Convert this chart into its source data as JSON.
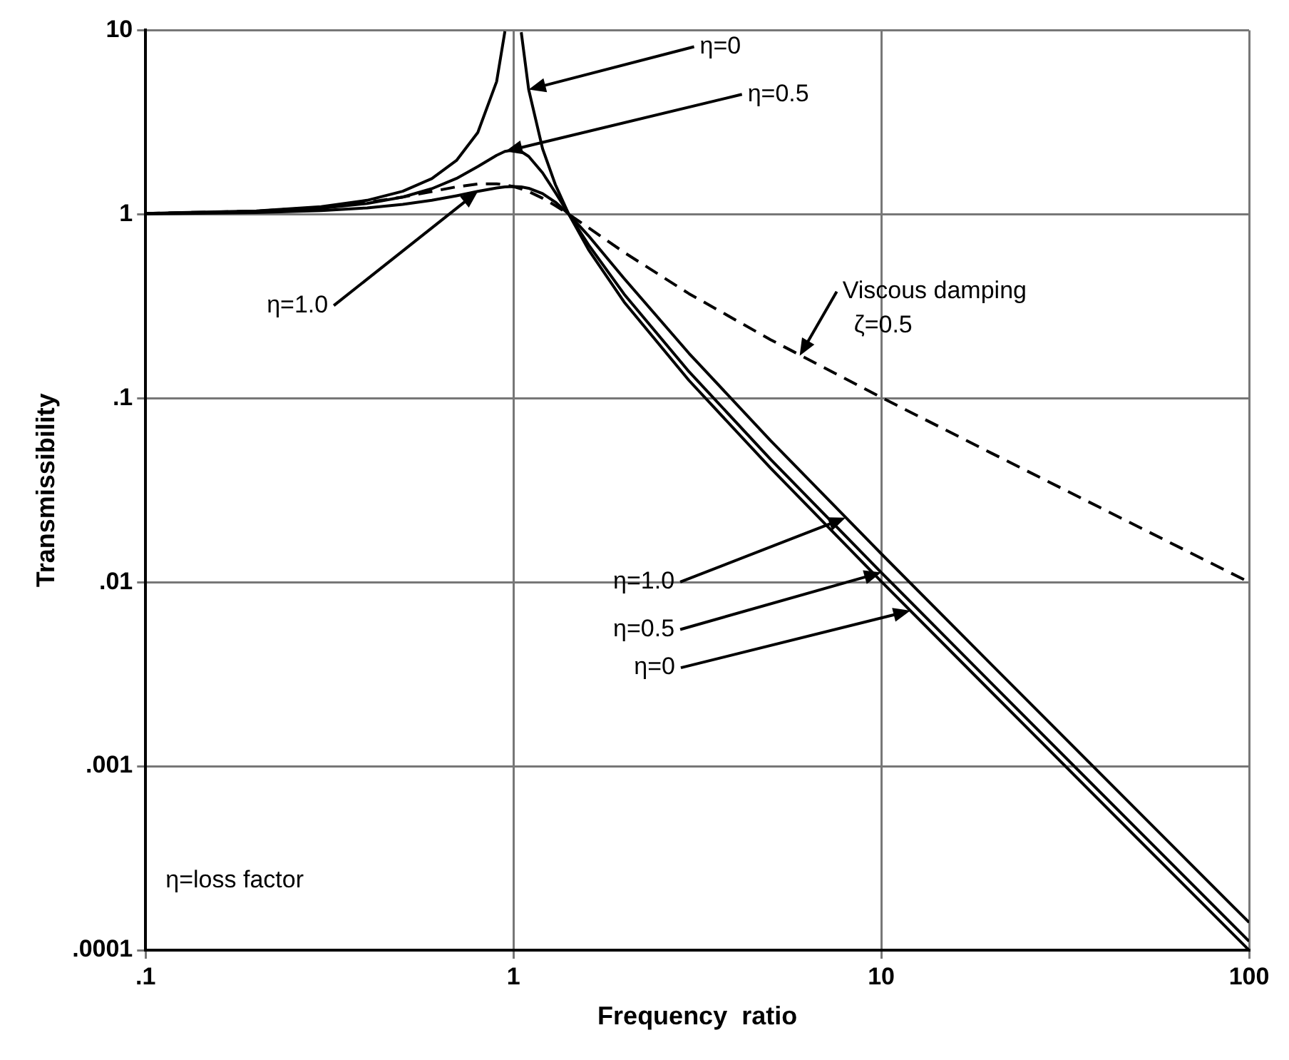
{
  "chart_data": {
    "type": "line",
    "xlabel": "Frequency  ratio",
    "ylabel": "Transmissibility",
    "log": "xy",
    "grid": true,
    "legend": false,
    "marker": "none",
    "x": [
      0.1,
      0.2,
      0.3,
      0.4,
      0.5,
      0.6,
      0.7,
      0.8,
      0.9,
      0.948,
      1,
      1.05,
      1.1,
      1.2,
      1.3,
      1.414,
      1.6,
      2,
      3,
      5,
      10,
      20,
      50,
      100
    ],
    "xlim": [
      0.1,
      100
    ],
    "ylim": [
      0.0001,
      10
    ],
    "xticks": [
      {
        "value": 0.1,
        "label": ".1"
      },
      1,
      10,
      100
    ],
    "yticks": [
      {
        "value": 0.0001,
        "label": ".0001"
      },
      {
        "value": 0.001,
        "label": ".001"
      },
      {
        "value": 0.01,
        "label": ".01"
      },
      {
        "value": 0.1,
        "label": ".1"
      },
      1,
      10
    ],
    "series": [
      {
        "color": "#000000",
        "line_style": "solid",
        "values": [
          1.01,
          1.042,
          1.099,
          1.19,
          1.333,
          1.5625,
          1.96,
          2.78,
          5.26,
          9.87,
          null,
          9.76,
          4.76,
          2.27,
          1.449,
          1.0,
          0.641,
          0.333,
          0.125,
          0.0417,
          0.0101,
          0.00251,
          0.0004,
          0.0001
        ]
      },
      {
        "color": "#000000",
        "line_style": "solid",
        "values": [
          1.008,
          1.033,
          1.077,
          1.144,
          1.24,
          1.377,
          1.565,
          1.815,
          2.09,
          2.195,
          2.236,
          2.19,
          2.062,
          1.679,
          1.312,
          1.0,
          0.6825,
          0.3676,
          0.1395,
          0.04658,
          0.01129,
          0.002802,
          0.0004474,
          0.0001118
        ]
      },
      {
        "color": "#000000",
        "line_style": "solid",
        "values": [
          1.005,
          1.02,
          1.046,
          1.083,
          1.131,
          1.191,
          1.26,
          1.331,
          1.389,
          1.408,
          1.414,
          1.407,
          1.384,
          1.294,
          1.164,
          1.0,
          0.7632,
          0.4472,
          0.1754,
          0.05887,
          0.01428,
          0.003544,
          0.0005659,
          0.0001414
        ]
      },
      {
        "color": "#000000",
        "line_style": "dashed",
        "values": [
          1.01,
          1.04,
          1.09,
          1.158,
          1.24,
          1.329,
          1.409,
          1.46,
          1.463,
          1.444,
          1.414,
          1.374,
          1.328,
          1.222,
          1.114,
          1.0,
          0.8443,
          0.6202,
          0.3701,
          0.208,
          0.101,
          0.05013,
          0.02001,
          0.010001
        ]
      }
    ],
    "annotations": [
      {
        "text": "η=0",
        "x": 1.1,
        "y": 4.76
      },
      {
        "text": "η=0.5",
        "x": 0.95,
        "y": 2.195
      },
      {
        "text": "η=1.0",
        "x": 0.8,
        "y": 1.33
      },
      {
        "text": "Viscous damping\nζ=0.5",
        "x": 6,
        "y": 0.17
      },
      {
        "text": "η=1.0",
        "x": 8,
        "y": 0.0224
      },
      {
        "text": "η=0.5",
        "x": 10,
        "y": 0.0113
      },
      {
        "text": "η=0",
        "x": 12,
        "y": 0.007
      },
      "η=loss factor"
    ]
  }
}
